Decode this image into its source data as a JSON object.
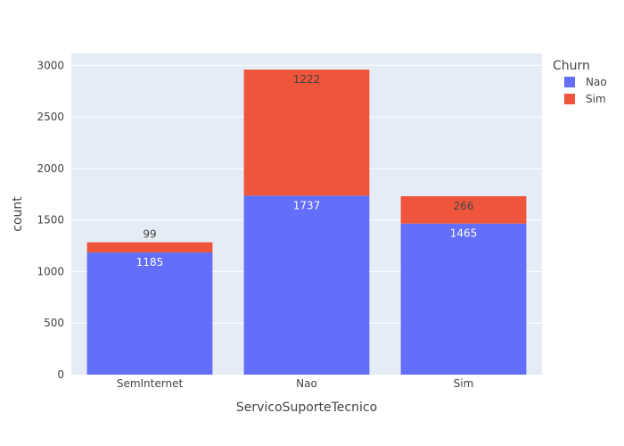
{
  "chart_data": {
    "type": "bar",
    "barmode": "stack",
    "categories": [
      "SemInternet",
      "Nao",
      "Sim"
    ],
    "series": [
      {
        "name": "Nao",
        "values": [
          1185,
          1737,
          1465
        ],
        "color": "#636efa",
        "label_color": "#ffffff"
      },
      {
        "name": "Sim",
        "values": [
          99,
          1222,
          266
        ],
        "color": "#ef553b",
        "label_color": "#444444"
      }
    ],
    "xlabel": "ServicoSuporteTecnico",
    "ylabel": "count",
    "ylim": [
      0,
      3115
    ],
    "yticks": [
      0,
      500,
      1000,
      1500,
      2000,
      2500,
      3000
    ],
    "grid": true,
    "legend": {
      "title": "Churn",
      "position": "top-right"
    },
    "plot_background": "#e5ecf6",
    "grid_color": "#ffffff"
  }
}
